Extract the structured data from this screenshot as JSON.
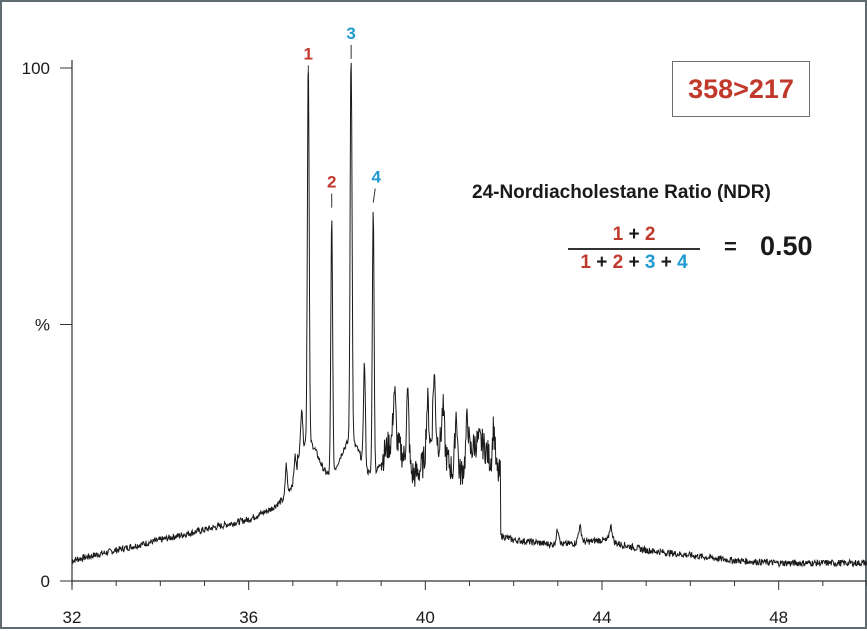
{
  "chart_data": {
    "type": "line",
    "title": "",
    "xlabel": "",
    "ylabel": "%",
    "xlim": [
      32,
      50
    ],
    "ylim": [
      0,
      100
    ],
    "x_ticks": [
      "32",
      "36",
      "40",
      "44",
      "48"
    ],
    "y_ticks": [
      "0",
      "%",
      "100"
    ],
    "series": [
      {
        "x": [
          32.0,
          33.0,
          34.0,
          35.0,
          36.0,
          36.5,
          36.8,
          37.0,
          37.2,
          37.35,
          37.5,
          37.8,
          37.88,
          38.0,
          38.2,
          38.32,
          38.45,
          38.6,
          38.82,
          39.0,
          39.3,
          39.6,
          39.9,
          40.15,
          40.4,
          40.7,
          40.95,
          41.25,
          41.55,
          41.65,
          42.0,
          43.0,
          44.0,
          45.0,
          46.0,
          47.0,
          48.0,
          49.0,
          50.0
        ],
        "y": [
          4,
          6,
          8,
          10,
          12,
          14,
          16,
          19,
          24,
          97,
          25,
          22,
          72,
          24,
          23,
          101,
          26,
          42,
          73,
          20,
          30,
          34,
          31,
          37,
          29,
          36,
          30,
          28,
          32,
          9,
          8,
          7,
          8,
          6,
          5,
          4,
          3.5,
          3.5,
          3.5
        ]
      }
    ],
    "peak_labels": [
      {
        "text": "1",
        "x": 37.35,
        "color": "#c0392b"
      },
      {
        "text": "2",
        "x": 37.88,
        "color": "#c0392b"
      },
      {
        "text": "3",
        "x": 38.32,
        "color": "#1f9bd1"
      },
      {
        "text": "4",
        "x": 38.82,
        "color": "#1f9bd1"
      }
    ],
    "annotation": "358>217",
    "ratio_title": "24-Nordiacholestane Ratio (NDR)",
    "formula": {
      "num": [
        "1",
        "+",
        "2"
      ],
      "den": [
        "1",
        "+",
        "2",
        "+",
        "3",
        "+",
        "4"
      ],
      "equals": "=",
      "value": "0.50"
    },
    "grid": false,
    "colors": {
      "trace": "#1a1a1a",
      "red": "#c0392b",
      "blue": "#1f9bd1"
    }
  }
}
